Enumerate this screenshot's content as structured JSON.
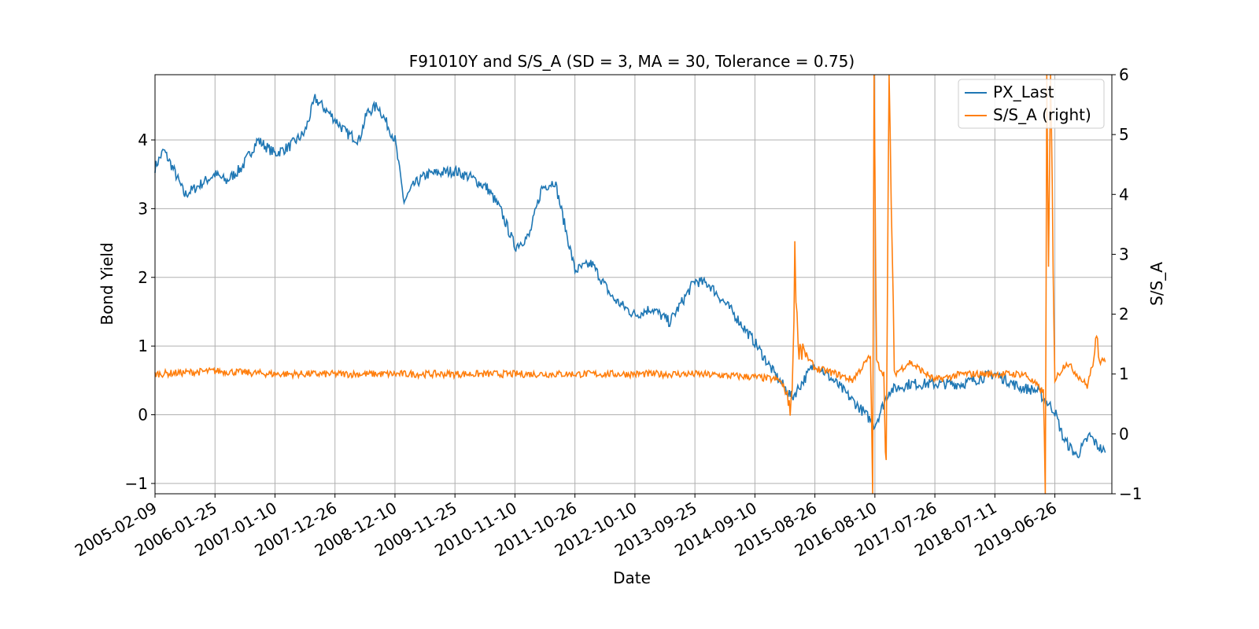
{
  "chart_data": {
    "type": "line",
    "title": "F91010Y and S/S_A (SD = 3, MA = 30, Tolerance  = 0.75)",
    "xlabel": "Date",
    "ylabel_left": "Bond Yield",
    "ylabel_right": "S/S_A",
    "x_tick_labels": [
      "2005-02-09",
      "2006-01-25",
      "2007-01-10",
      "2007-12-26",
      "2008-12-10",
      "2009-11-25",
      "2010-11-10",
      "2011-10-26",
      "2012-10-10",
      "2013-09-25",
      "2014-09-10",
      "2015-08-26",
      "2016-08-10",
      "2017-07-26",
      "2018-07-11",
      "2019-06-26"
    ],
    "ylim_left": [
      -1.15,
      4.95
    ],
    "ylim_right": [
      -1,
      6
    ],
    "yticks_left": [
      -1,
      0,
      1,
      2,
      3,
      4
    ],
    "yticks_right": [
      -1,
      0,
      1,
      2,
      3,
      4,
      5,
      6
    ],
    "grid": true,
    "legend_position": "top-right",
    "series": [
      {
        "name": "PX_Last",
        "axis": "left",
        "color": "#1f77b4",
        "x": [
          "2005-02-09",
          "2005-04-01",
          "2005-06-01",
          "2005-08-01",
          "2005-10-01",
          "2006-01-25",
          "2006-04-01",
          "2006-07-01",
          "2006-10-01",
          "2007-01-10",
          "2007-04-01",
          "2007-07-01",
          "2007-09-01",
          "2007-12-26",
          "2008-03-01",
          "2008-05-15",
          "2008-07-01",
          "2008-09-01",
          "2008-12-10",
          "2009-02-01",
          "2009-04-01",
          "2009-06-15",
          "2009-11-25",
          "2010-03-01",
          "2010-06-01",
          "2010-08-15",
          "2010-11-10",
          "2011-02-01",
          "2011-04-15",
          "2011-07-01",
          "2011-10-26",
          "2012-02-01",
          "2012-06-01",
          "2012-10-10",
          "2013-01-15",
          "2013-05-01",
          "2013-09-25",
          "2013-12-15",
          "2014-05-01",
          "2014-09-10",
          "2015-01-01",
          "2015-04-15",
          "2015-08-26",
          "2016-01-01",
          "2016-06-01",
          "2016-08-10",
          "2016-11-01",
          "2017-03-01",
          "2017-07-26",
          "2018-01-01",
          "2018-07-11",
          "2018-12-01",
          "2019-03-15",
          "2019-06-26",
          "2019-08-15",
          "2019-11-01",
          "2020-01-15",
          "2020-03-01",
          "2020-04-15"
        ],
        "values": [
          3.6,
          3.85,
          3.55,
          3.2,
          3.3,
          3.5,
          3.4,
          3.6,
          4.0,
          3.8,
          3.9,
          4.1,
          4.6,
          4.3,
          4.1,
          4.0,
          4.4,
          4.5,
          4.0,
          3.1,
          3.35,
          3.5,
          3.55,
          3.45,
          3.3,
          3.0,
          2.45,
          2.6,
          3.3,
          3.4,
          2.1,
          2.2,
          1.7,
          1.45,
          1.55,
          1.35,
          1.95,
          1.9,
          1.5,
          1.05,
          0.6,
          0.25,
          0.75,
          0.45,
          0.05,
          -0.15,
          0.35,
          0.45,
          0.45,
          0.45,
          0.6,
          0.4,
          0.35,
          0.05,
          -0.35,
          -0.6,
          -0.3,
          -0.45,
          -0.55
        ]
      },
      {
        "name": "S/S_A (right)",
        "axis": "right",
        "color": "#ff7f0e",
        "x": [
          "2005-02-09",
          "2006-01-25",
          "2007-01-10",
          "2007-12-26",
          "2008-12-10",
          "2009-11-25",
          "2010-11-10",
          "2011-10-26",
          "2012-10-10",
          "2013-09-25",
          "2014-09-10",
          "2015-02-01",
          "2015-04-15",
          "2015-05-01",
          "2015-05-20",
          "2015-08-26",
          "2016-01-01",
          "2016-04-01",
          "2016-07-15",
          "2016-07-28",
          "2016-08-05",
          "2016-08-20",
          "2016-10-01",
          "2016-10-15",
          "2016-11-01",
          "2016-12-01",
          "2017-03-01",
          "2017-07-26",
          "2018-01-01",
          "2018-07-11",
          "2019-01-01",
          "2019-04-20",
          "2019-05-01",
          "2019-05-10",
          "2019-05-20",
          "2019-06-01",
          "2019-06-26",
          "2019-09-01",
          "2020-01-01",
          "2020-03-01",
          "2020-04-15"
        ],
        "values": [
          1.0,
          1.05,
          1.0,
          1.0,
          1.0,
          1.0,
          1.0,
          1.0,
          1.0,
          1.0,
          0.95,
          0.9,
          0.5,
          3.0,
          1.5,
          1.1,
          1.0,
          0.9,
          1.3,
          -1.0,
          6.0,
          1.2,
          1.0,
          -0.5,
          6.0,
          1.0,
          1.2,
          0.9,
          1.0,
          1.0,
          1.0,
          0.7,
          -1.0,
          6.0,
          2.5,
          6.0,
          0.9,
          1.2,
          0.8,
          1.5,
          1.2
        ]
      }
    ]
  }
}
